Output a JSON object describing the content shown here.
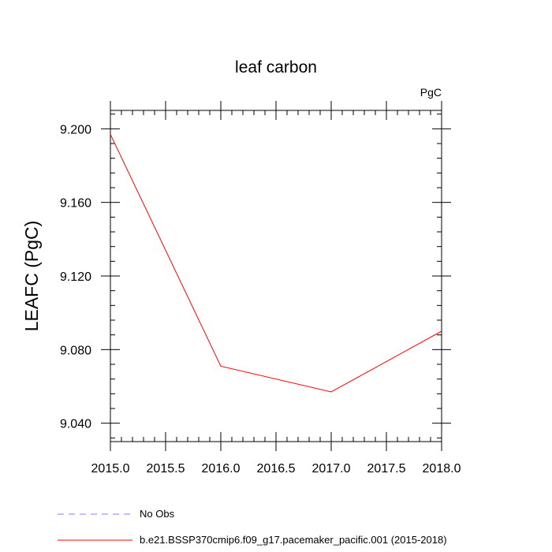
{
  "chart_data": {
    "type": "line",
    "title": "leaf carbon",
    "units": "PgC",
    "ylabel": "LEAFC  (PgC)",
    "xlabel": "",
    "xlim": [
      2015.0,
      2018.0
    ],
    "ylim": [
      9.03,
      9.21
    ],
    "x_ticks": [
      "2015.0",
      "2015.5",
      "2016.0",
      "2016.5",
      "2017.0",
      "2017.5",
      "2018.0"
    ],
    "y_ticks": [
      "9.040",
      "9.080",
      "9.120",
      "9.160",
      "9.200"
    ],
    "grid": false,
    "legend_position": "bottom",
    "series": [
      {
        "name": "No Obs",
        "color": "#8080ff",
        "dash": "dashed",
        "x": [],
        "y": []
      },
      {
        "name": "b.e21.BSSP370cmip6.f09_g17.pacemaker_pacific.001 (2015-2018)",
        "color": "#ff0000",
        "dash": "solid",
        "x": [
          2015.0,
          2016.0,
          2017.0,
          2018.0
        ],
        "y": [
          9.197,
          9.071,
          9.057,
          9.09
        ]
      }
    ]
  }
}
